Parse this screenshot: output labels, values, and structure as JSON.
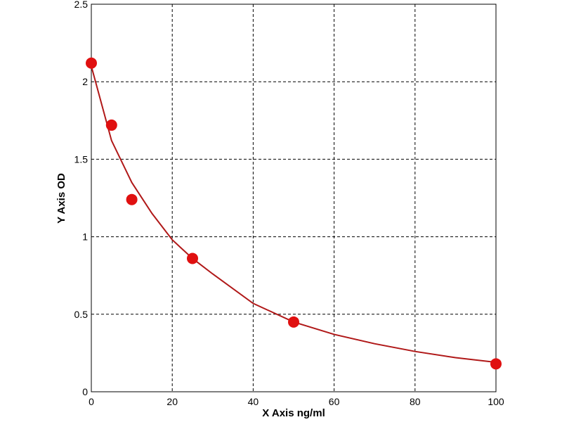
{
  "chart_data": {
    "type": "scatter",
    "x_label": "X Axis ng/ml",
    "y_label": "Y Axis OD",
    "xlim": [
      0,
      100
    ],
    "xticks": [
      0,
      20,
      40,
      60,
      80,
      100
    ],
    "ylim": [
      0,
      2.5
    ],
    "yticks": [
      0,
      0.5,
      1,
      1.5,
      2,
      2.5
    ],
    "grid": true,
    "series": [
      {
        "mode": "markers",
        "color": "#e01010",
        "x": [
          0,
          5,
          10,
          25,
          50,
          100
        ],
        "values": [
          2.12,
          1.72,
          1.24,
          0.86,
          0.45,
          0.18
        ]
      },
      {
        "mode": "line",
        "color": "#b01818",
        "x": [
          0,
          5,
          10,
          15,
          20,
          25,
          30,
          40,
          50,
          60,
          70,
          80,
          90,
          100
        ],
        "values": [
          2.1,
          1.62,
          1.35,
          1.15,
          0.98,
          0.86,
          0.76,
          0.57,
          0.45,
          0.37,
          0.31,
          0.26,
          0.22,
          0.19
        ]
      }
    ]
  }
}
